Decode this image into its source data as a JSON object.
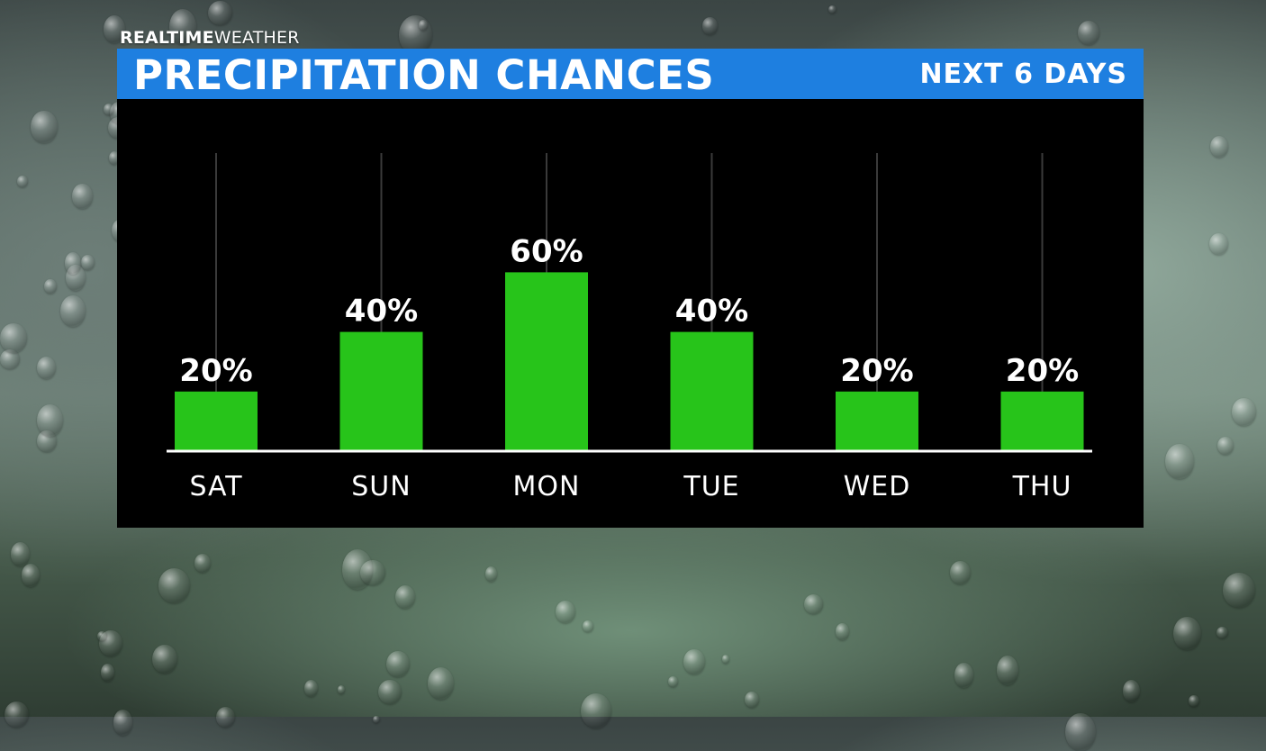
{
  "brand": {
    "strong": "REALTIME",
    "light": "WEATHER"
  },
  "header": {
    "title": "PRECIPITATION CHANCES",
    "subtitle": "NEXT 6 DAYS"
  },
  "colors": {
    "title_bar": "#1e7fe0",
    "bar": "#27c41a",
    "panel": "#000000",
    "text": "#ffffff"
  },
  "chart_data": {
    "type": "bar",
    "categories": [
      "SAT",
      "SUN",
      "MON",
      "TUE",
      "WED",
      "THU"
    ],
    "values": [
      20,
      40,
      60,
      40,
      20,
      20
    ],
    "data_labels": [
      "20%",
      "40%",
      "60%",
      "40%",
      "20%",
      "20%"
    ],
    "ylim": [
      0,
      100
    ],
    "grid": true
  }
}
